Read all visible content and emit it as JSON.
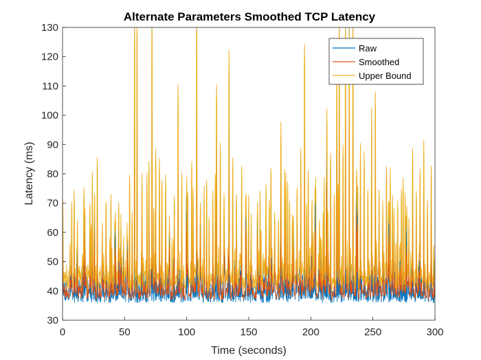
{
  "chart_data": {
    "type": "line",
    "title": "Alternate Parameters Smoothed TCP Latency",
    "xlabel": "Time (seconds)",
    "ylabel": "Latency (ms)",
    "xlim": [
      0,
      300
    ],
    "ylim": [
      30,
      130
    ],
    "xticks": [
      "0",
      "50",
      "100",
      "150",
      "200",
      "250",
      "300"
    ],
    "yticks": [
      "30",
      "40",
      "50",
      "60",
      "70",
      "80",
      "90",
      "100",
      "110",
      "120",
      "130"
    ],
    "grid": false,
    "legend_position": "top-right",
    "baseline_ms": 38,
    "sample_count": 1500,
    "series": [
      {
        "name": "Raw",
        "color": "#0072BD",
        "style": "spiky around 35-45 ms baseline"
      },
      {
        "name": "Smoothed",
        "color": "#D95319",
        "style": "close to raw"
      },
      {
        "name": "Upper Bound",
        "color": "#EDB120",
        "style": "envelope above raw"
      }
    ],
    "spikes": [
      {
        "x": 6,
        "y": 52
      },
      {
        "x": 12,
        "y": 58
      },
      {
        "x": 18,
        "y": 63
      },
      {
        "x": 23,
        "y": 60
      },
      {
        "x": 28,
        "y": 82
      },
      {
        "x": 32,
        "y": 60
      },
      {
        "x": 35,
        "y": 67
      },
      {
        "x": 38,
        "y": 52
      },
      {
        "x": 42,
        "y": 59
      },
      {
        "x": 47,
        "y": 60
      },
      {
        "x": 52,
        "y": 58
      },
      {
        "x": 54,
        "y": 75
      },
      {
        "x": 56,
        "y": 61
      },
      {
        "x": 58,
        "y": 130
      },
      {
        "x": 60,
        "y": 130
      },
      {
        "x": 64,
        "y": 75
      },
      {
        "x": 68,
        "y": 76
      },
      {
        "x": 72,
        "y": 130
      },
      {
        "x": 75,
        "y": 85
      },
      {
        "x": 78,
        "y": 81
      },
      {
        "x": 80,
        "y": 75
      },
      {
        "x": 83,
        "y": 74
      },
      {
        "x": 86,
        "y": 61
      },
      {
        "x": 90,
        "y": 70
      },
      {
        "x": 93,
        "y": 105
      },
      {
        "x": 96,
        "y": 75
      },
      {
        "x": 100,
        "y": 73
      },
      {
        "x": 104,
        "y": 80
      },
      {
        "x": 108,
        "y": 130
      },
      {
        "x": 111,
        "y": 67
      },
      {
        "x": 114,
        "y": 71
      },
      {
        "x": 116,
        "y": 74
      },
      {
        "x": 118,
        "y": 62
      },
      {
        "x": 121,
        "y": 69
      },
      {
        "x": 124,
        "y": 105
      },
      {
        "x": 127,
        "y": 87
      },
      {
        "x": 130,
        "y": 70
      },
      {
        "x": 134,
        "y": 116
      },
      {
        "x": 137,
        "y": 81
      },
      {
        "x": 140,
        "y": 68
      },
      {
        "x": 144,
        "y": 54
      },
      {
        "x": 148,
        "y": 59
      },
      {
        "x": 152,
        "y": 60
      },
      {
        "x": 157,
        "y": 64
      },
      {
        "x": 160,
        "y": 58
      },
      {
        "x": 164,
        "y": 72
      },
      {
        "x": 168,
        "y": 79
      },
      {
        "x": 171,
        "y": 63
      },
      {
        "x": 174,
        "y": 60
      },
      {
        "x": 176,
        "y": 92
      },
      {
        "x": 179,
        "y": 77
      },
      {
        "x": 183,
        "y": 68
      },
      {
        "x": 186,
        "y": 63
      },
      {
        "x": 189,
        "y": 72
      },
      {
        "x": 192,
        "y": 84
      },
      {
        "x": 195,
        "y": 120
      },
      {
        "x": 198,
        "y": 77
      },
      {
        "x": 201,
        "y": 68
      },
      {
        "x": 204,
        "y": 74
      },
      {
        "x": 207,
        "y": 59
      },
      {
        "x": 210,
        "y": 63
      },
      {
        "x": 213,
        "y": 97
      },
      {
        "x": 216,
        "y": 84
      },
      {
        "x": 219,
        "y": 70
      },
      {
        "x": 221,
        "y": 112
      },
      {
        "x": 223,
        "y": 130
      },
      {
        "x": 226,
        "y": 86
      },
      {
        "x": 228,
        "y": 130
      },
      {
        "x": 231,
        "y": 130
      },
      {
        "x": 234,
        "y": 130
      },
      {
        "x": 237,
        "y": 78
      },
      {
        "x": 240,
        "y": 84
      },
      {
        "x": 243,
        "y": 82
      },
      {
        "x": 246,
        "y": 72
      },
      {
        "x": 249,
        "y": 97
      },
      {
        "x": 252,
        "y": 103
      },
      {
        "x": 255,
        "y": 71
      },
      {
        "x": 258,
        "y": 65
      },
      {
        "x": 261,
        "y": 79
      },
      {
        "x": 264,
        "y": 77
      },
      {
        "x": 267,
        "y": 65
      },
      {
        "x": 270,
        "y": 66
      },
      {
        "x": 273,
        "y": 71
      },
      {
        "x": 276,
        "y": 67
      },
      {
        "x": 279,
        "y": 62
      },
      {
        "x": 282,
        "y": 85
      },
      {
        "x": 285,
        "y": 70
      },
      {
        "x": 288,
        "y": 79
      },
      {
        "x": 291,
        "y": 85
      },
      {
        "x": 294,
        "y": 67
      },
      {
        "x": 297,
        "y": 79
      },
      {
        "x": 299,
        "y": 52
      }
    ]
  }
}
